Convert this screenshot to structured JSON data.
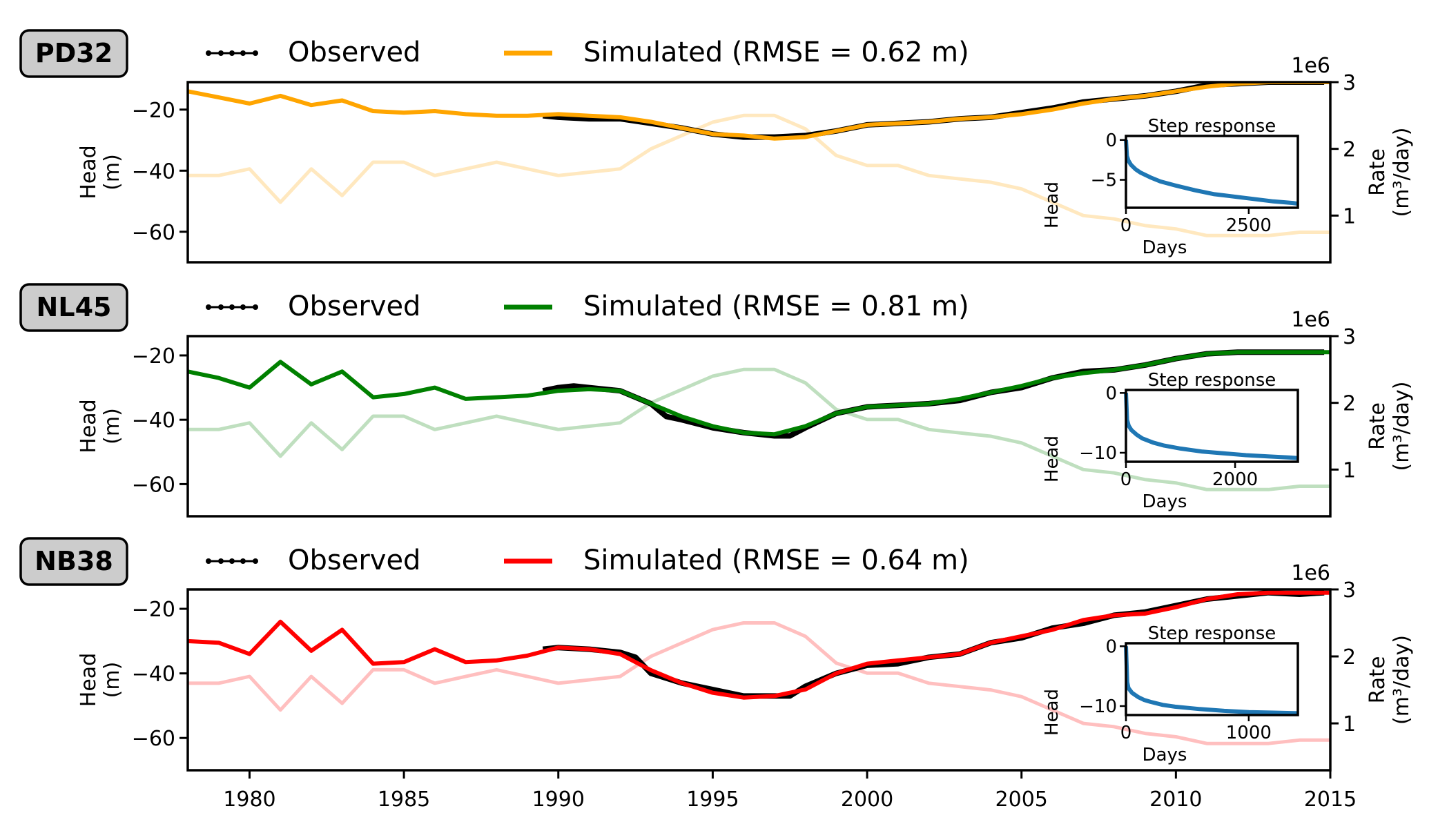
{
  "figure": {
    "x_tick_labels": [
      "1980",
      "1985",
      "1990",
      "1995",
      "2000",
      "2005",
      "2010",
      "2015"
    ],
    "legend_observed_label": "Observed",
    "colors": {
      "PD32": "#ffa500",
      "NL45": "#008000",
      "NB38": "#ff0000",
      "observed": "#000000",
      "step": "#1f77b4"
    }
  },
  "chart_data": [
    {
      "type": "line",
      "panel_label": "PD32",
      "legend": [
        "Observed",
        "Simulated (RMSE = 0.62 m)"
      ],
      "ylabel": [
        "Head",
        "(m)"
      ],
      "ylabel_right": [
        "Rate",
        "(m³/day)"
      ],
      "right_offset_label": "1e6",
      "xlim": [
        1978,
        2015
      ],
      "ylim": [
        -70,
        -11
      ],
      "yticks": [
        -20,
        -40,
        -60
      ],
      "ylim_right": [
        0.3,
        3.0
      ],
      "yticks_right": [
        1,
        2,
        3
      ],
      "simulated": {
        "x": [
          1978,
          1979,
          1980,
          1981,
          1982,
          1983,
          1984,
          1985,
          1986,
          1987,
          1988,
          1989,
          1990,
          1991,
          1992,
          1993,
          1994,
          1995,
          1996,
          1997,
          1998,
          1999,
          2000,
          2001,
          2002,
          2003,
          2004,
          2005,
          2006,
          2007,
          2008,
          2009,
          2010,
          2011,
          2012,
          2013,
          2014,
          2015
        ],
        "y": [
          -14,
          -16,
          -18,
          -15.5,
          -18.5,
          -17,
          -20.5,
          -21,
          -20.5,
          -21.5,
          -22,
          -22,
          -21.5,
          -22,
          -22.5,
          -24,
          -26,
          -28,
          -28.5,
          -29.5,
          -29,
          -27,
          -25,
          -24.5,
          -24,
          -23,
          -22.5,
          -21.5,
          -20,
          -18,
          -16.5,
          -15.5,
          -14,
          -12.5,
          -11.5,
          -11,
          -11,
          -11
        ]
      },
      "observed": {
        "x": [
          1989.5,
          1990,
          1991,
          1992,
          1993,
          1994,
          1995,
          1996,
          1997,
          1998,
          1999,
          2000,
          2001,
          2002,
          2003,
          2004,
          2005,
          2006,
          2007,
          2008,
          2009,
          2010,
          2011,
          2012,
          2013,
          2014,
          2014.8
        ],
        "y": [
          -22,
          -22.5,
          -23,
          -23,
          -24.5,
          -26,
          -28,
          -29,
          -29,
          -28.5,
          -27,
          -25,
          -24.5,
          -24,
          -23,
          -22.5,
          -21,
          -19.5,
          -17.5,
          -16.5,
          -15.5,
          -14,
          -12,
          -11.5,
          -11,
          -11,
          -11
        ]
      },
      "rate": {
        "x": [
          1978,
          1979,
          1980,
          1981,
          1982,
          1983,
          1984,
          1985,
          1986,
          1987,
          1988,
          1989,
          1990,
          1991,
          1992,
          1993,
          1994,
          1995,
          1996,
          1997,
          1998,
          1999,
          2000,
          2001,
          2002,
          2003,
          2004,
          2005,
          2006,
          2007,
          2008,
          2009,
          2010,
          2011,
          2012,
          2013,
          2014,
          2015
        ],
        "y": [
          1.6,
          1.6,
          1.7,
          1.2,
          1.7,
          1.3,
          1.8,
          1.8,
          1.6,
          1.7,
          1.8,
          1.7,
          1.6,
          1.65,
          1.7,
          2.0,
          2.2,
          2.4,
          2.5,
          2.5,
          2.3,
          1.9,
          1.75,
          1.75,
          1.6,
          1.55,
          1.5,
          1.4,
          1.2,
          1.0,
          0.95,
          0.85,
          0.8,
          0.7,
          0.7,
          0.7,
          0.75,
          0.75
        ]
      },
      "step_response": {
        "title": "Step response",
        "xlabel": "Days",
        "ylabel": "Head",
        "xlim": [
          0,
          3500
        ],
        "ylim": [
          -8.5,
          0.5
        ],
        "xticks": [
          0,
          2500
        ],
        "yticks": [
          0,
          -5
        ],
        "x": [
          0,
          20,
          50,
          100,
          200,
          300,
          500,
          700,
          1000,
          1400,
          1800,
          2200,
          2600,
          3000,
          3400,
          3500
        ],
        "y": [
          0,
          -2.0,
          -2.6,
          -3.1,
          -3.7,
          -4.1,
          -4.7,
          -5.2,
          -5.7,
          -6.3,
          -6.8,
          -7.1,
          -7.4,
          -7.7,
          -7.9,
          -8.0
        ]
      }
    },
    {
      "type": "line",
      "panel_label": "NL45",
      "legend": [
        "Observed",
        "Simulated (RMSE = 0.81 m)"
      ],
      "ylabel": [
        "Head",
        "(m)"
      ],
      "ylabel_right": [
        "Rate",
        "(m³/day)"
      ],
      "right_offset_label": "1e6",
      "xlim": [
        1978,
        2015
      ],
      "ylim": [
        -70,
        -14
      ],
      "yticks": [
        -20,
        -40,
        -60
      ],
      "ylim_right": [
        0.3,
        3.0
      ],
      "yticks_right": [
        1,
        2,
        3
      ],
      "simulated": {
        "x": [
          1978,
          1979,
          1980,
          1981,
          1982,
          1983,
          1984,
          1985,
          1986,
          1987,
          1988,
          1989,
          1990,
          1991,
          1992,
          1993,
          1994,
          1995,
          1996,
          1997,
          1998,
          1999,
          2000,
          2001,
          2002,
          2003,
          2004,
          2005,
          2006,
          2007,
          2008,
          2009,
          2010,
          2011,
          2012,
          2013,
          2014,
          2015
        ],
        "y": [
          -25,
          -27,
          -30,
          -22,
          -29,
          -25,
          -33,
          -32,
          -30,
          -33.5,
          -33,
          -32.5,
          -31,
          -30.5,
          -31,
          -35,
          -39,
          -42,
          -44,
          -44.5,
          -42,
          -38,
          -36,
          -35.5,
          -35,
          -33.5,
          -31.5,
          -29.5,
          -27,
          -25.5,
          -24.5,
          -23,
          -21,
          -19.5,
          -19,
          -19,
          -19,
          -19
        ]
      },
      "observed": {
        "x": [
          1989.5,
          1990,
          1990.5,
          1991,
          1992,
          1993,
          1993.5,
          1994,
          1995,
          1996,
          1997,
          1997.5,
          1998,
          1999,
          2000,
          2001,
          2002,
          2003,
          2004,
          2005,
          2006,
          2007,
          2008,
          2009,
          2010,
          2011,
          2012,
          2013,
          2014,
          2014.8
        ],
        "y": [
          -31,
          -30,
          -29.5,
          -30,
          -31,
          -35,
          -39,
          -40,
          -42.5,
          -44,
          -45,
          -45,
          -42.5,
          -38,
          -36,
          -35.5,
          -35,
          -34,
          -31.5,
          -30,
          -27,
          -25,
          -24.5,
          -23,
          -21,
          -19.5,
          -19,
          -19,
          -19,
          -19
        ]
      },
      "rate": {
        "x": [
          1978,
          1979,
          1980,
          1981,
          1982,
          1983,
          1984,
          1985,
          1986,
          1987,
          1988,
          1989,
          1990,
          1991,
          1992,
          1993,
          1994,
          1995,
          1996,
          1997,
          1998,
          1999,
          2000,
          2001,
          2002,
          2003,
          2004,
          2005,
          2006,
          2007,
          2008,
          2009,
          2010,
          2011,
          2012,
          2013,
          2014,
          2015
        ],
        "y": [
          1.6,
          1.6,
          1.7,
          1.2,
          1.7,
          1.3,
          1.8,
          1.8,
          1.6,
          1.7,
          1.8,
          1.7,
          1.6,
          1.65,
          1.7,
          2.0,
          2.2,
          2.4,
          2.5,
          2.5,
          2.3,
          1.9,
          1.75,
          1.75,
          1.6,
          1.55,
          1.5,
          1.4,
          1.2,
          1.0,
          0.95,
          0.85,
          0.8,
          0.7,
          0.7,
          0.7,
          0.75,
          0.75
        ]
      },
      "step_response": {
        "title": "Step response",
        "xlabel": "Days",
        "ylabel": "Head",
        "xlim": [
          0,
          3150
        ],
        "ylim": [
          -11.5,
          0.5
        ],
        "xticks": [
          0,
          2000
        ],
        "yticks": [
          0,
          -10
        ],
        "x": [
          0,
          20,
          50,
          100,
          200,
          300,
          500,
          700,
          1000,
          1400,
          1800,
          2200,
          2600,
          3000,
          3150
        ],
        "y": [
          0,
          -4.5,
          -5.5,
          -6.2,
          -7.0,
          -7.6,
          -8.3,
          -8.8,
          -9.3,
          -9.8,
          -10.1,
          -10.4,
          -10.6,
          -10.8,
          -10.9
        ]
      }
    },
    {
      "type": "line",
      "panel_label": "NB38",
      "legend": [
        "Observed",
        "Simulated (RMSE = 0.64 m)"
      ],
      "ylabel": [
        "Head",
        "(m)"
      ],
      "ylabel_right": [
        "Rate",
        "(m³/day)"
      ],
      "right_offset_label": "1e6",
      "xlim": [
        1978,
        2015
      ],
      "ylim": [
        -70,
        -14
      ],
      "yticks": [
        -20,
        -40,
        -60
      ],
      "ylim_right": [
        0.3,
        3.0
      ],
      "yticks_right": [
        1,
        2,
        3
      ],
      "simulated": {
        "x": [
          1978,
          1979,
          1980,
          1981,
          1982,
          1983,
          1984,
          1985,
          1986,
          1987,
          1988,
          1989,
          1990,
          1991,
          1992,
          1993,
          1994,
          1995,
          1996,
          1997,
          1998,
          1999,
          2000,
          2001,
          2002,
          2003,
          2004,
          2005,
          2006,
          2007,
          2008,
          2009,
          2010,
          2011,
          2012,
          2013,
          2014,
          2015
        ],
        "y": [
          -30,
          -30.5,
          -34,
          -24,
          -33,
          -26.5,
          -37,
          -36.5,
          -32.5,
          -36.5,
          -36,
          -34.5,
          -32,
          -32.5,
          -34,
          -39,
          -43,
          -46,
          -47.5,
          -47,
          -45,
          -40,
          -37,
          -36,
          -35,
          -34,
          -30.5,
          -28.5,
          -26.5,
          -23.5,
          -22,
          -21.5,
          -19.5,
          -17,
          -15.5,
          -15,
          -15,
          -15
        ]
      },
      "observed": {
        "x": [
          1989.5,
          1990,
          1991,
          1992,
          1992.5,
          1993,
          1994,
          1995,
          1996,
          1997,
          1997.5,
          1998,
          1999,
          2000,
          2001,
          2002,
          2003,
          2004,
          2005,
          2006,
          2007,
          2008,
          2009,
          2010,
          2011,
          2012,
          2013,
          2014,
          2014.8
        ],
        "y": [
          -32.5,
          -32,
          -32.5,
          -33.5,
          -35,
          -40,
          -43,
          -45,
          -47,
          -47,
          -47,
          -44,
          -40,
          -37.5,
          -37,
          -35,
          -34,
          -30.5,
          -29,
          -26,
          -24.5,
          -22,
          -21,
          -19,
          -17,
          -16,
          -15,
          -15.5,
          -15
        ]
      },
      "rate": {
        "x": [
          1978,
          1979,
          1980,
          1981,
          1982,
          1983,
          1984,
          1985,
          1986,
          1987,
          1988,
          1989,
          1990,
          1991,
          1992,
          1993,
          1994,
          1995,
          1996,
          1997,
          1998,
          1999,
          2000,
          2001,
          2002,
          2003,
          2004,
          2005,
          2006,
          2007,
          2008,
          2009,
          2010,
          2011,
          2012,
          2013,
          2014,
          2015
        ],
        "y": [
          1.6,
          1.6,
          1.7,
          1.2,
          1.7,
          1.3,
          1.8,
          1.8,
          1.6,
          1.7,
          1.8,
          1.7,
          1.6,
          1.65,
          1.7,
          2.0,
          2.2,
          2.4,
          2.5,
          2.5,
          2.3,
          1.9,
          1.75,
          1.75,
          1.6,
          1.55,
          1.5,
          1.4,
          1.2,
          1.0,
          0.95,
          0.85,
          0.8,
          0.7,
          0.7,
          0.7,
          0.75,
          0.75
        ]
      },
      "step_response": {
        "title": "Step response",
        "xlabel": "Days",
        "ylabel": "Head",
        "xlim": [
          0,
          1400
        ],
        "ylim": [
          -11.5,
          0.5
        ],
        "xticks": [
          0,
          1000
        ],
        "yticks": [
          0,
          -10
        ],
        "x": [
          0,
          10,
          20,
          50,
          100,
          150,
          200,
          300,
          400,
          600,
          800,
          1000,
          1200,
          1400
        ],
        "y": [
          0,
          -6.0,
          -7.0,
          -7.8,
          -8.5,
          -9.0,
          -9.3,
          -9.8,
          -10.1,
          -10.5,
          -10.8,
          -11.0,
          -11.1,
          -11.2
        ]
      }
    }
  ]
}
